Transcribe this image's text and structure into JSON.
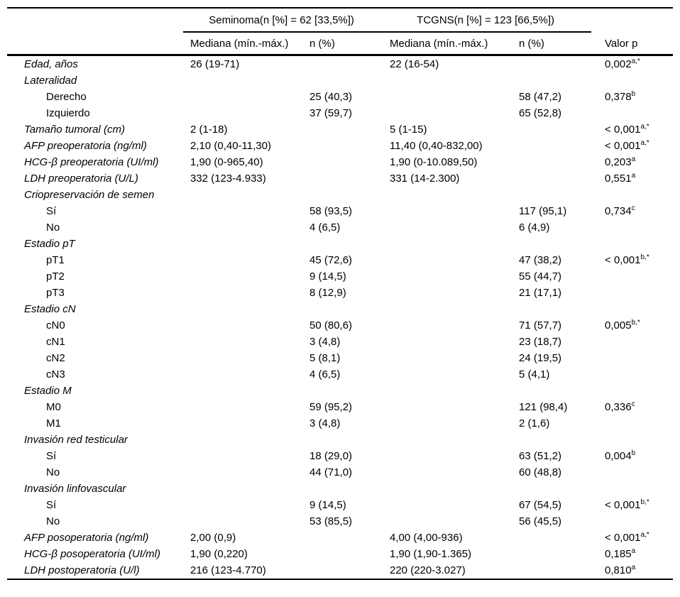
{
  "colors": {
    "text": "#000000",
    "background": "#ffffff",
    "rule": "#000000"
  },
  "table": {
    "group_headers": {
      "seminoma": "Seminoma(n [%] = 62 [33,5%])",
      "tcgns": "TCGNS(n [%] = 123 [66,5%])"
    },
    "column_headers": {
      "seminoma_median": "Mediana (mín.-máx.)",
      "seminoma_n": "n (%)",
      "tcgns_median": "Mediana (mín.-máx.)",
      "tcgns_n": "n (%)",
      "p": "Valor p"
    },
    "rows": [
      {
        "label": "Edad, años",
        "style": "category",
        "sem_med": "26 (19-71)",
        "sem_n": "",
        "tcgns_med": "22 (16-54)",
        "tcgns_n": "",
        "p": "0,002",
        "p_sup": "a,*"
      },
      {
        "label": "Lateralidad",
        "style": "category",
        "sem_med": "",
        "sem_n": "",
        "tcgns_med": "",
        "tcgns_n": "",
        "p": "",
        "p_sup": ""
      },
      {
        "label": "Derecho",
        "style": "sub",
        "sem_med": "",
        "sem_n": "25 (40,3)",
        "tcgns_med": "",
        "tcgns_n": "58 (47,2)",
        "p": "0,378",
        "p_sup": "b"
      },
      {
        "label": "Izquierdo",
        "style": "sub",
        "sem_med": "",
        "sem_n": "37 (59,7)",
        "tcgns_med": "",
        "tcgns_n": "65 (52,8)",
        "p": "",
        "p_sup": ""
      },
      {
        "label": "Tamaño tumoral (cm)",
        "style": "category",
        "sem_med": "2 (1-18)",
        "sem_n": "",
        "tcgns_med": "5 (1-15)",
        "tcgns_n": "",
        "p": "< 0,001",
        "p_sup": "a,*"
      },
      {
        "label": "AFP preoperatoria (ng/ml)",
        "style": "category",
        "sem_med": "2,10 (0,40-11,30)",
        "sem_n": "",
        "tcgns_med": "11,40 (0,40-832,00)",
        "tcgns_n": "",
        "p": "< 0,001",
        "p_sup": "a,*"
      },
      {
        "label": "HCG-β preoperatoria (UI/ml)",
        "style": "category",
        "sem_med": "1,90 (0-965,40)",
        "sem_n": "",
        "tcgns_med": "1,90 (0-10.089,50)",
        "tcgns_n": "",
        "p": "0,203",
        "p_sup": "a"
      },
      {
        "label": "LDH preoperatoria (U/L)",
        "style": "category",
        "sem_med": "332 (123-4.933)",
        "sem_n": "",
        "tcgns_med": "331 (14-2.300)",
        "tcgns_n": "",
        "p": "0,551",
        "p_sup": "a"
      },
      {
        "label": "Criopreservación de semen",
        "style": "category",
        "sem_med": "",
        "sem_n": "",
        "tcgns_med": "",
        "tcgns_n": "",
        "p": "",
        "p_sup": ""
      },
      {
        "label": "Sí",
        "style": "sub",
        "sem_med": "",
        "sem_n": "58 (93,5)",
        "tcgns_med": "",
        "tcgns_n": "117 (95,1)",
        "p": "0,734",
        "p_sup": "c"
      },
      {
        "label": "No",
        "style": "sub",
        "sem_med": "",
        "sem_n": "4 (6,5)",
        "tcgns_med": "",
        "tcgns_n": "6 (4,9)",
        "p": "",
        "p_sup": ""
      },
      {
        "label": "Estadio pT",
        "style": "category",
        "sem_med": "",
        "sem_n": "",
        "tcgns_med": "",
        "tcgns_n": "",
        "p": "",
        "p_sup": ""
      },
      {
        "label": "pT1",
        "style": "sub",
        "sem_med": "",
        "sem_n": "45 (72,6)",
        "tcgns_med": "",
        "tcgns_n": "47 (38,2)",
        "p": "< 0,001",
        "p_sup": "b,*"
      },
      {
        "label": "pT2",
        "style": "sub",
        "sem_med": "",
        "sem_n": "9 (14,5)",
        "tcgns_med": "",
        "tcgns_n": "55 (44,7)",
        "p": "",
        "p_sup": ""
      },
      {
        "label": "pT3",
        "style": "sub",
        "sem_med": "",
        "sem_n": "8 (12,9)",
        "tcgns_med": "",
        "tcgns_n": "21 (17,1)",
        "p": "",
        "p_sup": ""
      },
      {
        "label": "Estadio cN",
        "style": "category",
        "sem_med": "",
        "sem_n": "",
        "tcgns_med": "",
        "tcgns_n": "",
        "p": "",
        "p_sup": ""
      },
      {
        "label": "cN0",
        "style": "sub",
        "sem_med": "",
        "sem_n": "50 (80,6)",
        "tcgns_med": "",
        "tcgns_n": "71 (57,7)",
        "p": "0,005",
        "p_sup": "b,*"
      },
      {
        "label": "cN1",
        "style": "sub",
        "sem_med": "",
        "sem_n": "3 (4,8)",
        "tcgns_med": "",
        "tcgns_n": "23 (18,7)",
        "p": "",
        "p_sup": ""
      },
      {
        "label": "cN2",
        "style": "sub",
        "sem_med": "",
        "sem_n": "5 (8,1)",
        "tcgns_med": "",
        "tcgns_n": "24 (19,5)",
        "p": "",
        "p_sup": ""
      },
      {
        "label": "cN3",
        "style": "sub",
        "sem_med": "",
        "sem_n": "4 (6,5)",
        "tcgns_med": "",
        "tcgns_n": "5 (4,1)",
        "p": "",
        "p_sup": ""
      },
      {
        "label": "Estadio M",
        "style": "category",
        "sem_med": "",
        "sem_n": "",
        "tcgns_med": "",
        "tcgns_n": "",
        "p": "",
        "p_sup": ""
      },
      {
        "label": "M0",
        "style": "sub",
        "sem_med": "",
        "sem_n": "59 (95,2)",
        "tcgns_med": "",
        "tcgns_n": "121 (98,4)",
        "p": "0,336",
        "p_sup": "c"
      },
      {
        "label": "M1",
        "style": "sub",
        "sem_med": "",
        "sem_n": "3 (4,8)",
        "tcgns_med": "",
        "tcgns_n": "2 (1,6)",
        "p": "",
        "p_sup": ""
      },
      {
        "label": "Invasión red testicular",
        "style": "category",
        "sem_med": "",
        "sem_n": "",
        "tcgns_med": "",
        "tcgns_n": "",
        "p": "",
        "p_sup": ""
      },
      {
        "label": "Sí",
        "style": "sub",
        "sem_med": "",
        "sem_n": "18 (29,0)",
        "tcgns_med": "",
        "tcgns_n": "63 (51,2)",
        "p": "0,004",
        "p_sup": "b"
      },
      {
        "label": "No",
        "style": "sub",
        "sem_med": "",
        "sem_n": "44 (71,0)",
        "tcgns_med": "",
        "tcgns_n": "60 (48,8)",
        "p": "",
        "p_sup": ""
      },
      {
        "label": "Invasión linfovascular",
        "style": "category",
        "sem_med": "",
        "sem_n": "",
        "tcgns_med": "",
        "tcgns_n": "",
        "p": "",
        "p_sup": ""
      },
      {
        "label": "Sí",
        "style": "sub",
        "sem_med": "",
        "sem_n": "9 (14,5)",
        "tcgns_med": "",
        "tcgns_n": "67 (54,5)",
        "p": "< 0,001",
        "p_sup": "b,*"
      },
      {
        "label": "No",
        "style": "sub",
        "sem_med": "",
        "sem_n": "53 (85,5)",
        "tcgns_med": "",
        "tcgns_n": "56 (45,5)",
        "p": "",
        "p_sup": ""
      },
      {
        "label": "AFP posoperatoria (ng/ml)",
        "style": "category",
        "sem_med": "2,00 (0,9)",
        "sem_n": "",
        "tcgns_med": "4,00 (4,00-936)",
        "tcgns_n": "",
        "p": "< 0,001",
        "p_sup": "a,*"
      },
      {
        "label": "HCG-β posoperatoria (UI/ml)",
        "style": "category",
        "sem_med": "1,90 (0,220)",
        "sem_n": "",
        "tcgns_med": "1,90 (1,90-1.365)",
        "tcgns_n": "",
        "p": "0,185",
        "p_sup": "a"
      },
      {
        "label": "LDH postoperatoria (U/l)",
        "style": "category",
        "sem_med": "216 (123-4.770)",
        "sem_n": "",
        "tcgns_med": "220 (220-3.027)",
        "tcgns_n": "",
        "p": "0,810",
        "p_sup": "a"
      }
    ]
  }
}
